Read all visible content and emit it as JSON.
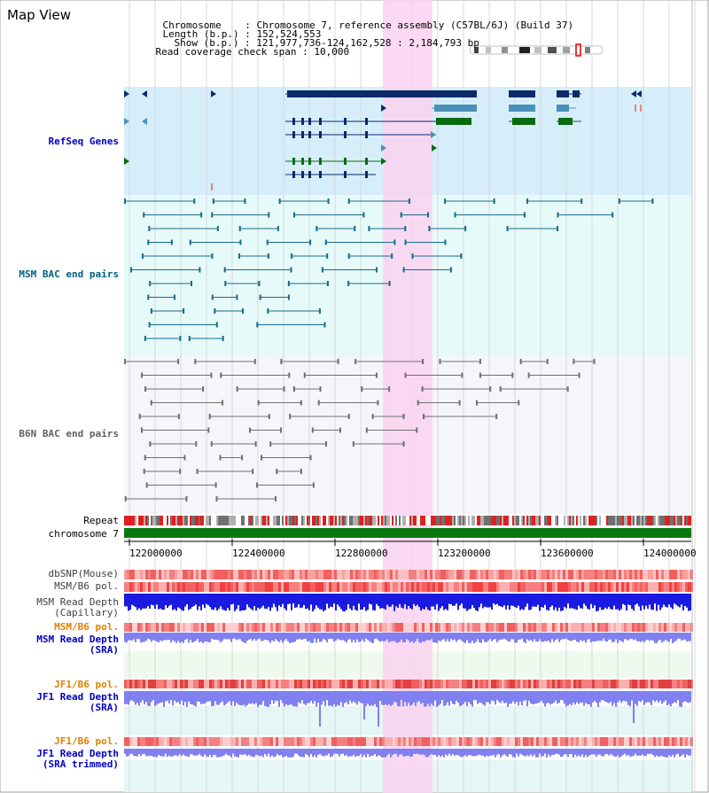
{
  "app": {
    "title": "Map View"
  },
  "info": {
    "chromosome_label": "Chromosome",
    "chromosome_value": "Chromosome 7, reference assembly (C57BL/6J) (Build 37)",
    "length_label": "Length (b.p.)",
    "length_value": "152,524,553",
    "show_label": "Show (b.p.)",
    "show_value": "121,977,736-124,162,528 : 2,184,793 bp",
    "coverage_label": "Read coverage check span",
    "coverage_value": "10,000"
  },
  "tracks": {
    "refseq": "RefSeq Genes",
    "msm_bac": "MSM BAC end pairs",
    "b6n_bac": "B6N BAC end pairs",
    "repeat": "Repeat",
    "chromosome": "chromosome 7",
    "dbsnp": "dbSNP(Mouse)",
    "msm_b6_pol1": "MSM/B6 pol.",
    "msm_depth_cap_1": "MSM Read Depth",
    "msm_depth_cap_2": "(Capillary)",
    "msm_b6_pol2": "MSM/B6 pol.",
    "msm_depth_sra_1": "MSM Read Depth",
    "msm_depth_sra_2": "(SRA)",
    "jf1_b6_pol1": "JF1/B6 pol.",
    "jf1_depth_sra_1": "JF1 Read Depth",
    "jf1_depth_sra_2": "(SRA)",
    "jf1_b6_pol2": "JF1/B6 pol.",
    "jf1_depth_trim_1": "JF1 Read Depth",
    "jf1_depth_trim_2": "(SRA trimmed)"
  },
  "ruler": {
    "ticks": [
      "122000000",
      "122400000",
      "122800000",
      "123200000",
      "123600000",
      "124000000"
    ]
  },
  "colors": {
    "refseq_bg": "#d6eefa",
    "msm_bac_bg": "#e6fafa",
    "b6n_bac_bg": "#f4f6fa",
    "highlight": "#fad2f0",
    "gene_dark": "#0a2a6a",
    "gene_mid": "#4a90b8",
    "gene_green": "#0a6a10",
    "msm_bac": "#1a6a8a",
    "b6n_bac": "#707070",
    "chromosome": "#0a7a10",
    "snp_red": "#f06060",
    "depth_blue": "#1a1ae0",
    "depth_light": "#8080f0",
    "label_blue": "#0000c0",
    "label_orange": "#e08000",
    "label_teal": "#006080"
  }
}
